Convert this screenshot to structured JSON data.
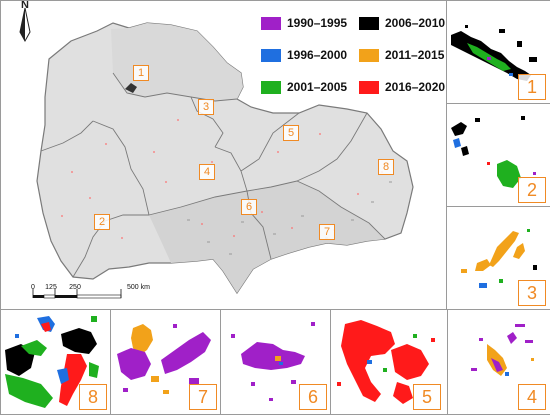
{
  "main_map": {
    "north_label": "N",
    "scale_bar": {
      "ticks": [
        "0",
        "125",
        "250",
        "500 km"
      ]
    },
    "region_labels": [
      "1",
      "2",
      "3",
      "4",
      "5",
      "6",
      "7",
      "8"
    ]
  },
  "legend": [
    {
      "label": "1990–1995",
      "color": "#a020c8"
    },
    {
      "label": "2006–2010",
      "color": "#000000"
    },
    {
      "label": "1996–2000",
      "color": "#1f6fe0"
    },
    {
      "label": "2011–2015",
      "color": "#f2a21a"
    },
    {
      "label": "2001–2005",
      "color": "#1fb01f"
    },
    {
      "label": "2016–2020",
      "color": "#ff1a1a"
    }
  ],
  "insets": [
    {
      "label": "1"
    },
    {
      "label": "2"
    },
    {
      "label": "3"
    },
    {
      "label": "4"
    },
    {
      "label": "5"
    },
    {
      "label": "6"
    },
    {
      "label": "7"
    },
    {
      "label": "8"
    }
  ],
  "colors": {
    "label_orange": "#f08a24",
    "frame_gray": "#9a9a9a"
  }
}
